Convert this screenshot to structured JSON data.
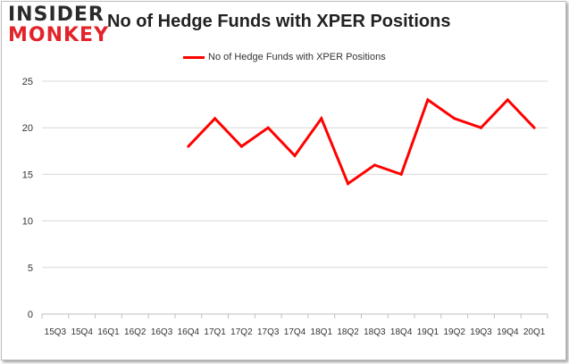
{
  "brand": {
    "line1": "INSIDER",
    "line2": "MONKEY"
  },
  "colors": {
    "series": "#ff0000",
    "brand_red": "#e3232a",
    "grid": "#d9d9d9"
  },
  "chart_data": {
    "type": "line",
    "title": "No of Hedge Funds with XPER Positions",
    "legend": "top-center",
    "grid": true,
    "ylim": [
      0,
      25
    ],
    "yticks": [
      0,
      5,
      10,
      15,
      20,
      25
    ],
    "categories": [
      "15Q3",
      "15Q4",
      "16Q1",
      "16Q2",
      "16Q3",
      "16Q4",
      "17Q1",
      "17Q2",
      "17Q3",
      "17Q4",
      "18Q1",
      "18Q2",
      "18Q3",
      "18Q4",
      "19Q1",
      "19Q2",
      "19Q3",
      "19Q4",
      "20Q1"
    ],
    "series": [
      {
        "name": "No of Hedge Funds with XPER Positions",
        "values": [
          null,
          null,
          null,
          null,
          null,
          18,
          21,
          18,
          20,
          17,
          21,
          14,
          16,
          15,
          23,
          21,
          20,
          23,
          20
        ]
      }
    ]
  }
}
